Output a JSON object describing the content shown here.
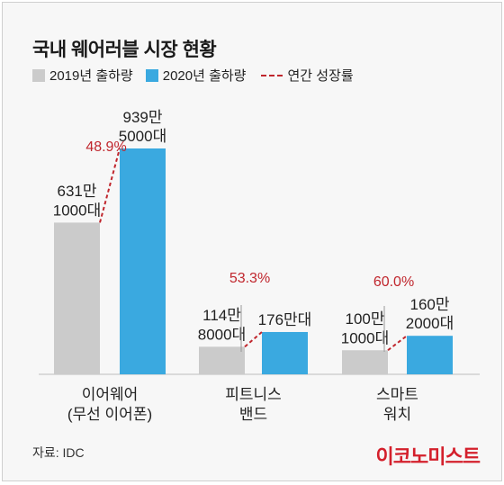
{
  "title": "국내 웨어러블 시장 현황",
  "legend": {
    "s2019": "2019년 출하량",
    "s2020": "2020년 출하량",
    "growth": "연간 성장률"
  },
  "colors": {
    "s2019": "#cbcbcb",
    "s2020": "#3aa9e0",
    "growth": "#c0262d"
  },
  "source": "자료: IDC",
  "brand": "이코노미스트",
  "chart_data": {
    "type": "bar",
    "categories": [
      [
        "이어웨어",
        "(무선 이어폰)"
      ],
      [
        "피트니스",
        "밴드"
      ],
      [
        "스마트",
        "워치"
      ]
    ],
    "series": [
      {
        "name": "2019년 출하량",
        "values": [
          6311000,
          1148000,
          1001000
        ],
        "labels": [
          [
            "631만",
            "1000대"
          ],
          [
            "114만",
            "8000대"
          ],
          [
            "100만",
            "1000대"
          ]
        ]
      },
      {
        "name": "2020년 출하량",
        "values": [
          9395000,
          1760000,
          1602000
        ],
        "labels": [
          [
            "939만",
            "5000대"
          ],
          [
            "176만대"
          ],
          [
            "160만",
            "2000대"
          ]
        ]
      }
    ],
    "growth": [
      "48.9%",
      "53.3%",
      "60.0%"
    ],
    "ylim": [
      0,
      9395000
    ]
  }
}
